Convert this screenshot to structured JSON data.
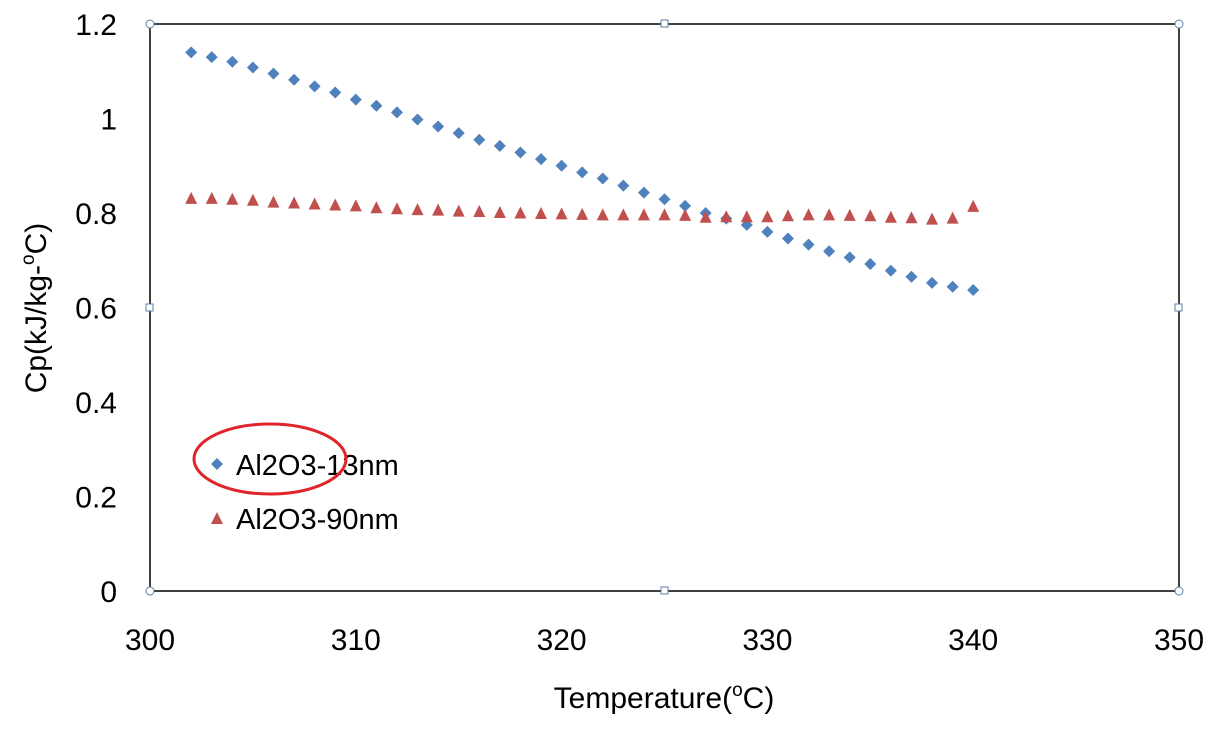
{
  "chart_data": {
    "type": "scatter",
    "title": "",
    "xlabel": "Temperature(",
    "xlabel_sup": "o",
    "xlabel_suffix": "C)",
    "ylabel": "Cp(kJ/kg-",
    "ylabel_sup": "o",
    "ylabel_suffix": "C)",
    "xlim": [
      300,
      350
    ],
    "ylim": [
      0,
      1.2
    ],
    "xticks": [
      300,
      310,
      320,
      330,
      340,
      350
    ],
    "yticks": [
      0,
      0.2,
      0.4,
      0.6,
      0.8,
      1,
      1.2
    ],
    "xtick_labels": [
      "300",
      "310",
      "320",
      "330",
      "340",
      "350"
    ],
    "ytick_labels": [
      "0",
      "0.2",
      "0.4",
      "0.6",
      "0.8",
      "1",
      "1.2"
    ],
    "grid": false,
    "legend_position": "lower-left",
    "legend_highlight": "red ellipse around Al2O3-13nm entry",
    "series": [
      {
        "name": "Al2O3-13nm",
        "marker": "diamond",
        "color": "#4F81BD",
        "x": [
          302,
          303,
          304,
          305,
          306,
          307,
          308,
          309,
          310,
          311,
          312,
          313,
          314,
          315,
          316,
          317,
          318,
          319,
          320,
          321,
          322,
          323,
          324,
          325,
          326,
          327,
          328,
          329,
          330,
          331,
          332,
          333,
          334,
          335,
          336,
          337,
          338,
          339,
          340
        ],
        "y": [
          1.14,
          1.13,
          1.12,
          1.108,
          1.095,
          1.082,
          1.068,
          1.055,
          1.04,
          1.027,
          1.013,
          0.998,
          0.983,
          0.969,
          0.955,
          0.942,
          0.928,
          0.914,
          0.9,
          0.886,
          0.873,
          0.858,
          0.843,
          0.829,
          0.815,
          0.8,
          0.788,
          0.775,
          0.76,
          0.746,
          0.733,
          0.719,
          0.706,
          0.692,
          0.678,
          0.665,
          0.652,
          0.644,
          0.637
        ]
      },
      {
        "name": "Al2O3-90nm",
        "marker": "triangle",
        "color": "#C0504D",
        "x": [
          302,
          303,
          304,
          305,
          306,
          307,
          308,
          309,
          310,
          311,
          312,
          313,
          314,
          315,
          316,
          317,
          318,
          319,
          320,
          321,
          322,
          323,
          324,
          325,
          326,
          327,
          328,
          329,
          330,
          331,
          332,
          333,
          334,
          335,
          336,
          337,
          338,
          339,
          340
        ],
        "y": [
          0.83,
          0.83,
          0.828,
          0.826,
          0.822,
          0.82,
          0.818,
          0.816,
          0.814,
          0.81,
          0.808,
          0.806,
          0.805,
          0.803,
          0.802,
          0.8,
          0.799,
          0.798,
          0.797,
          0.796,
          0.795,
          0.795,
          0.795,
          0.795,
          0.794,
          0.79,
          0.791,
          0.791,
          0.791,
          0.793,
          0.795,
          0.795,
          0.794,
          0.793,
          0.79,
          0.789,
          0.786,
          0.788,
          0.813
        ]
      }
    ]
  }
}
